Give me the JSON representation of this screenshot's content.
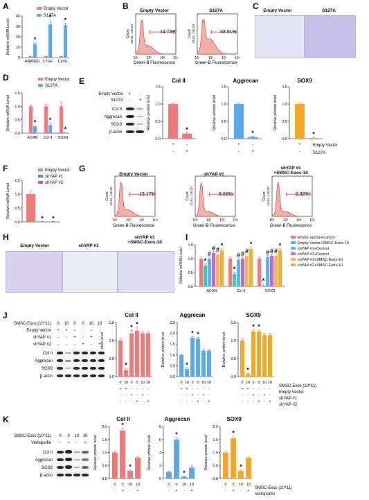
{
  "panel_labels": [
    "A",
    "B",
    "C",
    "D",
    "E",
    "F",
    "G",
    "H",
    "I",
    "J",
    "K"
  ],
  "colors": {
    "ev": "#f07878",
    "s127a": "#5aa8e8",
    "shyap1": "#4a90d9",
    "shyap2": "#b05cc8",
    "coral": "#f07878",
    "blue": "#5aa8e8",
    "orange": "#f5a623",
    "teal": "#48c0b0",
    "lightblue": "#60b0f0",
    "purple": "#b66ad0",
    "gold": "#e8b040",
    "lightorange": "#f4b460"
  },
  "A": {
    "ylabel": "Relative mRNA Level",
    "legend": [
      "Empty Vector",
      "S127A"
    ],
    "categories": [
      "ANKRD1",
      "CTGF",
      "Cyr61"
    ],
    "ticks": [
      "0",
      "10",
      "20",
      "30",
      "40"
    ]
  },
  "B": {
    "titles": [
      "Empty Vector",
      "S127A"
    ],
    "pct": [
      "14.73%",
      "33.91%"
    ],
    "ylabel": "Count",
    "ytick": "43.81, 140.20",
    "xlabel": "Green-B Fluorescence",
    "xticks": [
      "10¹",
      "10²",
      "10³",
      "10⁴"
    ]
  },
  "C": {
    "titles": [
      "Empty Vector",
      "S127A"
    ]
  },
  "D": {
    "ylabel": "Relative mRNA Level",
    "legend": [
      "Empty Vector",
      "S127A"
    ],
    "categories": [
      "ACAN",
      "Col II",
      "SOX9"
    ],
    "ticks": [
      "0.0",
      "0.5",
      "1.0",
      "1.5"
    ]
  },
  "E": {
    "rows": [
      "Empty Vector",
      "S127A"
    ],
    "signs_r1": [
      "+",
      "-"
    ],
    "signs_r2": [
      "-",
      "+"
    ],
    "blots": [
      "Col II",
      "Aggrecan",
      "SOX9",
      "β-actin"
    ],
    "ylabel": "Relative protein level",
    "ticks": [
      "0.0",
      "0.5",
      "1.0",
      "1.5"
    ],
    "cond_labels": [
      "Empty Vector",
      "S127A"
    ]
  },
  "F": {
    "ylabel": "Relative mRNA Level",
    "legend": [
      "Empty Vector",
      "shYAP #1",
      "shYAP #2"
    ],
    "ticks": [
      "0.0",
      "0.5",
      "1.0",
      "1.5"
    ]
  },
  "G": {
    "titles": [
      "Empty Vector",
      "shYAP #1",
      "shYAP #1\n+SMSC-Exos-10"
    ],
    "pct": [
      "13.17%",
      "6.80%",
      "6.92%"
    ],
    "ylabel": "Count",
    "ytick": "43.81, 140.20",
    "xlabel": "Green-B Fluorescence",
    "xticks": [
      "10¹",
      "10²",
      "10³",
      "10⁴"
    ]
  },
  "H": {
    "titles": [
      "Empty Vector",
      "shYAP #1",
      "shYAP #1\n+SMSC-Exos-10"
    ]
  },
  "I": {
    "ylabel": "Relative mRNA Level",
    "legend": [
      "Empty Vector+Control",
      "Empty Vector+SMSC-Exos-10",
      "shYAP #1+Control",
      "shYAP #2+Control",
      "shYAP #1+SMSC-Exos-10",
      "shYAP #2+SMSC-Exos-10"
    ],
    "categories": [
      "ACAN",
      "Col II",
      "SOX9"
    ],
    "ticks": [
      "0.0",
      "0.5",
      "1.0",
      "1.5"
    ]
  },
  "J": {
    "rows": [
      "SMSC-Exos (10^11)",
      "Empty Vector",
      "shYAP #1",
      "shYAP #2"
    ],
    "row_vals": [
      [
        "0",
        "10",
        "0",
        "0",
        "10",
        "10"
      ],
      [
        "+",
        "+",
        "-",
        "-",
        "-",
        "-"
      ],
      [
        "-",
        "-",
        "+",
        "-",
        "+",
        "-"
      ],
      [
        "-",
        "-",
        "-",
        "+",
        "-",
        "+"
      ]
    ],
    "blots": [
      "Col II",
      "Aggrecan",
      "SOX9",
      "β-actin"
    ],
    "ylabel": "Relative protein level",
    "ticks": [
      "0.0",
      "0.5",
      "1.0",
      "1.5"
    ],
    "ticks2": [
      "0.0",
      "0.5",
      "1.0",
      "1.5",
      "2.0",
      "2.5"
    ],
    "cond_labels": [
      "SMSC-Exos (10^11)",
      "Empty Vector",
      "shYAP #1",
      "shYAP #2"
    ]
  },
  "K": {
    "rows": [
      "SMSC-Exos (10^11)",
      "Verteporfin"
    ],
    "row_vals": [
      [
        "0",
        "0",
        "10",
        "10"
      ],
      [
        "-",
        "+",
        "-",
        "+"
      ]
    ],
    "blots": [
      "Col II",
      "Aggrecan",
      "SOX9",
      "β-actin"
    ],
    "ylabel": "Relative protein level",
    "ticks": [
      "0.0",
      "0.5",
      "1.0",
      "1.5",
      "2.0"
    ],
    "ticks2": [
      "0",
      "2",
      "4",
      "6",
      "8"
    ],
    "cond_labels": [
      "SMSC-Exos (10^11)",
      "Verteporfin"
    ]
  },
  "titles": {
    "col2": "Col II",
    "agg": "Aggrecan",
    "sox9": "SOX9"
  },
  "star": "*",
  "hash": "#",
  "chart_data": [
    {
      "panel": "A",
      "type": "bar",
      "categories": [
        "ANKRD1",
        "CTGF",
        "Cyr61"
      ],
      "series": [
        {
          "name": "Empty Vector",
          "values": [
            1,
            1,
            1
          ]
        },
        {
          "name": "S127A",
          "values": [
            13,
            32,
            31
          ]
        }
      ],
      "ylabel": "Relative mRNA Level",
      "ylim": [
        0,
        40
      ]
    },
    {
      "panel": "D",
      "type": "bar",
      "categories": [
        "ACAN",
        "Col II",
        "SOX9"
      ],
      "series": [
        {
          "name": "Empty Vector",
          "values": [
            1,
            1,
            1
          ]
        },
        {
          "name": "S127A",
          "values": [
            0.25,
            0.3,
            0.01
          ]
        }
      ],
      "ylabel": "Relative mRNA Level",
      "ylim": [
        0,
        1.5
      ]
    },
    {
      "panel": "E",
      "type": "bar",
      "title": "Col II",
      "values": [
        1.0,
        0.15
      ],
      "ylim": [
        0,
        1.5
      ]
    },
    {
      "panel": "E",
      "type": "bar",
      "title": "Aggrecan",
      "values": [
        1.0,
        0.05
      ],
      "ylim": [
        0,
        1.5
      ]
    },
    {
      "panel": "E",
      "type": "bar",
      "title": "SOX9",
      "values": [
        1.0,
        0.02
      ],
      "ylim": [
        0,
        1.5
      ]
    },
    {
      "panel": "F",
      "type": "bar",
      "series": [
        {
          "name": "Empty Vector",
          "values": [
            1.0
          ]
        },
        {
          "name": "shYAP #1",
          "values": [
            0.01
          ]
        },
        {
          "name": "shYAP #2",
          "values": [
            0.01
          ]
        }
      ],
      "ylim": [
        0,
        1.5
      ]
    },
    {
      "panel": "I",
      "type": "bar",
      "categories": [
        "ACAN",
        "Col II",
        "SOX9"
      ],
      "series": [
        {
          "name": "Empty Vector+Control",
          "values": [
            1.0,
            1.0,
            1.0
          ]
        },
        {
          "name": "Empty Vector+SMSC-Exos-10",
          "values": [
            0.75,
            0.45,
            0.03
          ]
        },
        {
          "name": "shYAP #1+Control",
          "values": [
            1.0,
            0.95,
            1.05
          ]
        },
        {
          "name": "shYAP #2+Control",
          "values": [
            1.2,
            1.0,
            1.1
          ]
        },
        {
          "name": "shYAP #1+SMSC-Exos-10",
          "values": [
            1.15,
            1.1,
            1.1
          ]
        },
        {
          "name": "shYAP #2+SMSC-Exos-10",
          "values": [
            1.3,
            1.35,
            1.3
          ]
        }
      ],
      "ylim": [
        0,
        1.5
      ]
    },
    {
      "panel": "J",
      "type": "bar",
      "title": "Col II",
      "values": [
        1.0,
        0.18,
        1.2,
        1.27,
        1.2,
        1.2
      ],
      "ylim": [
        0,
        1.5
      ]
    },
    {
      "panel": "J",
      "type": "bar",
      "title": "Aggrecan",
      "values": [
        1.0,
        0.35,
        1.8,
        1.75,
        1.2,
        1.2
      ],
      "ylim": [
        0,
        2.5
      ]
    },
    {
      "panel": "J",
      "type": "bar",
      "title": "SOX9",
      "values": [
        1.0,
        0.08,
        1.25,
        1.25,
        1.15,
        1.15
      ],
      "ylim": [
        0,
        1.5
      ]
    },
    {
      "panel": "K",
      "type": "bar",
      "title": "Col II",
      "values": [
        1.0,
        1.85,
        0.3,
        0.8
      ],
      "ylim": [
        0,
        2.0
      ]
    },
    {
      "panel": "K",
      "type": "bar",
      "title": "Aggrecan",
      "values": [
        1.0,
        6.0,
        0.3,
        1.7
      ],
      "ylim": [
        0,
        8
      ]
    },
    {
      "panel": "K",
      "type": "bar",
      "title": "SOX9",
      "values": [
        1.0,
        1.55,
        0.3,
        0.8
      ],
      "ylim": [
        0,
        2.0
      ]
    }
  ]
}
